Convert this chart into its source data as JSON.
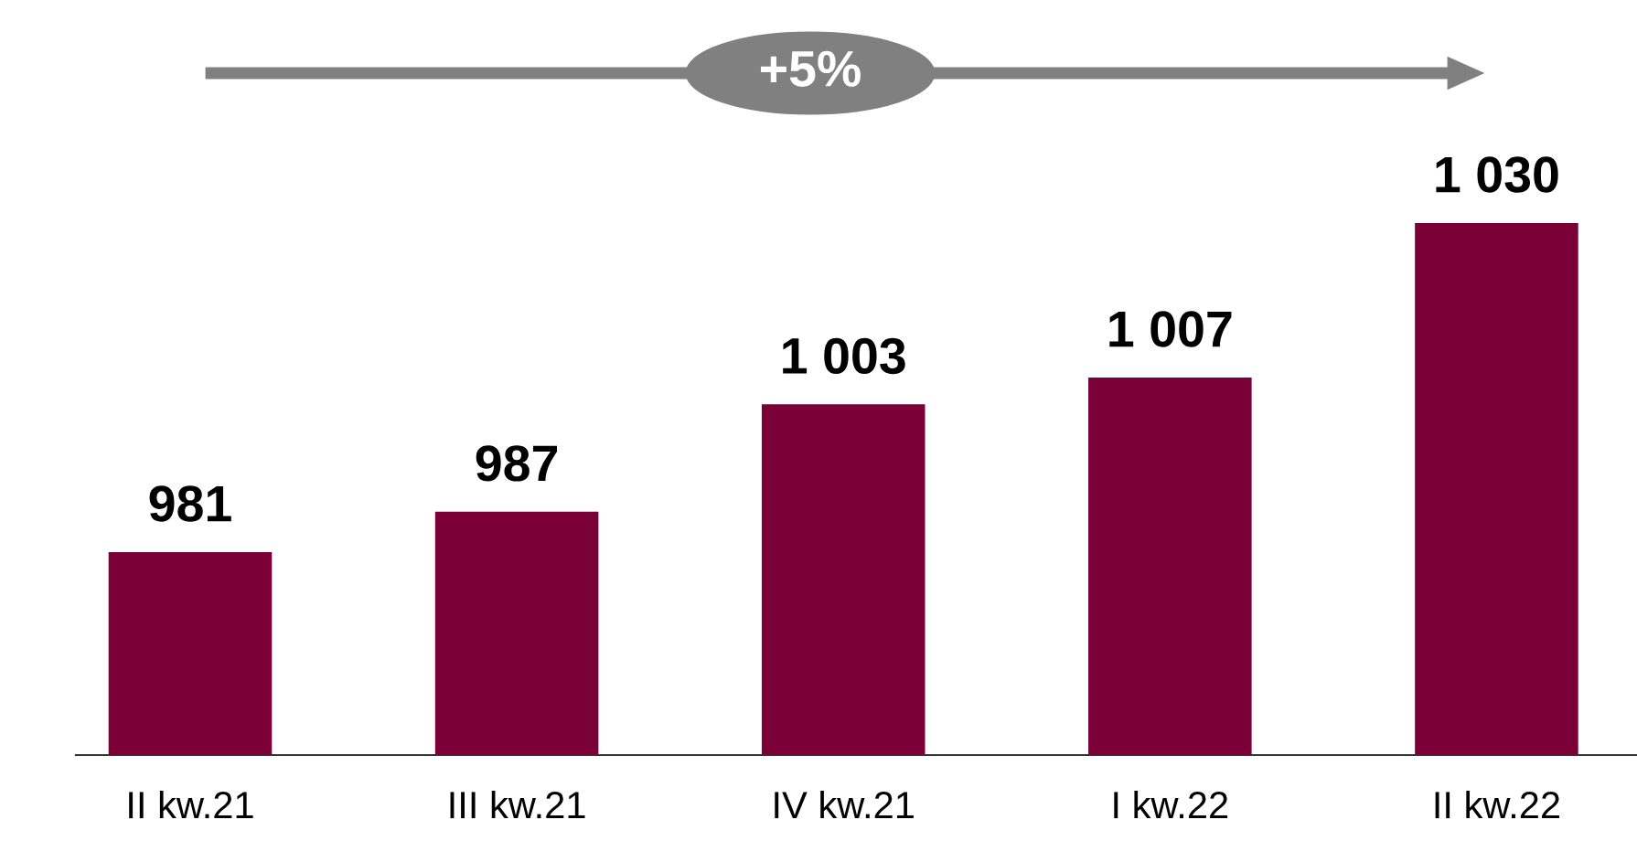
{
  "chart_data": {
    "type": "bar",
    "categories": [
      "II kw.21",
      "III kw.21",
      "IV kw.21",
      "I kw.22",
      "II kw.22"
    ],
    "values": [
      981,
      987,
      1003,
      1007,
      1030
    ],
    "value_labels": [
      "981",
      "987",
      "1 003",
      "1 007",
      "1 030"
    ],
    "color": "#7b0037",
    "tick_labels": "x",
    "grid": false,
    "legend": false,
    "annotations": [
      "+5%"
    ]
  }
}
